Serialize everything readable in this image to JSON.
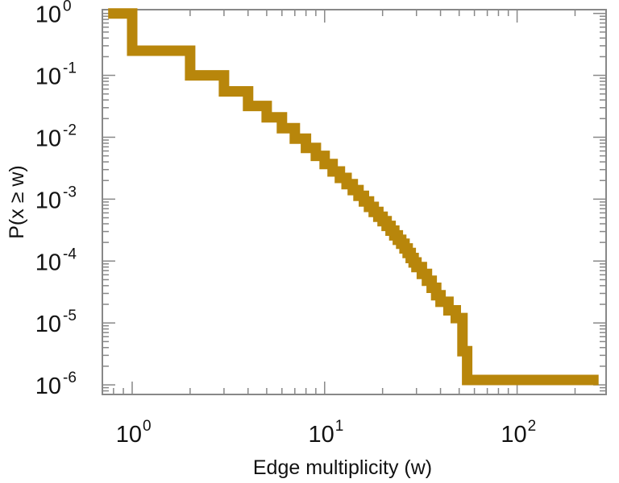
{
  "chart_data": {
    "type": "line",
    "step": true,
    "xscale": "log",
    "yscale": "log",
    "xlabel": "Edge multiplicity (w)",
    "ylabel": "P(x ≥ w)",
    "xlim": [
      0.7,
      290
    ],
    "ylim": [
      7e-07,
      1.15
    ],
    "x_ticks": [
      {
        "value": 1,
        "base": "10",
        "exp": "0"
      },
      {
        "value": 10,
        "base": "10",
        "exp": "1"
      },
      {
        "value": 100,
        "base": "10",
        "exp": "2"
      }
    ],
    "y_ticks": [
      {
        "value": 1,
        "base": "10",
        "exp": "0"
      },
      {
        "value": 0.1,
        "base": "10",
        "exp": "-1"
      },
      {
        "value": 0.01,
        "base": "10",
        "exp": "-2"
      },
      {
        "value": 0.001,
        "base": "10",
        "exp": "-3"
      },
      {
        "value": 0.0001,
        "base": "10",
        "exp": "-4"
      },
      {
        "value": 1e-05,
        "base": "10",
        "exp": "-5"
      },
      {
        "value": 1e-06,
        "base": "10",
        "exp": "-6"
      }
    ],
    "series": [
      {
        "color": "#b8860b",
        "x": [
          0.75,
          1,
          2,
          3,
          4,
          5,
          6,
          7,
          8,
          9,
          10,
          11,
          12,
          13,
          14,
          15,
          16,
          17,
          18,
          19,
          20,
          21,
          22,
          23,
          24,
          25,
          26,
          27,
          28,
          29,
          30,
          32,
          34,
          36,
          38,
          40,
          44,
          48,
          52,
          55,
          265
        ],
        "y": [
          1,
          0.25,
          0.1,
          0.055,
          0.032,
          0.021,
          0.014,
          0.0095,
          0.0067,
          0.005,
          0.0037,
          0.0028,
          0.0022,
          0.00175,
          0.0014,
          0.00113,
          0.00092,
          0.00075,
          0.00062,
          0.00052,
          0.00044,
          0.00037,
          0.00031,
          0.00026,
          0.00022,
          0.00019,
          0.00016,
          0.000135,
          0.000112,
          9.5e-05,
          8e-05,
          6.2e-05,
          4.8e-05,
          3.7e-05,
          2.8e-05,
          2.2e-05,
          1.6e-05,
          1.2e-05,
          3.5e-06,
          1.2e-06,
          1.2e-06
        ]
      }
    ],
    "grid": false
  }
}
